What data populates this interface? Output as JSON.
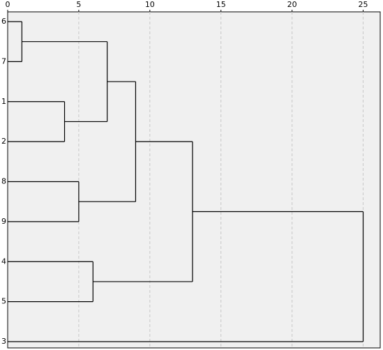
{
  "chart_data": {
    "type": "dendrogram",
    "leaves": [
      "6",
      "7",
      "1",
      "2",
      "8",
      "9",
      "4",
      "5",
      "3"
    ],
    "merges": [
      {
        "nodes": [
          0,
          1
        ],
        "height": 1
      },
      {
        "nodes": [
          2,
          3
        ],
        "height": 4
      },
      {
        "nodes": [
          4,
          5
        ],
        "height": 5
      },
      {
        "nodes": [
          6,
          7
        ],
        "height": 6
      },
      {
        "nodes": [
          9,
          10
        ],
        "height": 7
      },
      {
        "nodes": [
          13,
          11
        ],
        "height": 9
      },
      {
        "nodes": [
          14,
          12
        ],
        "height": 13
      },
      {
        "nodes": [
          15,
          8
        ],
        "height": 25
      }
    ],
    "xlim": [
      0,
      26.2
    ],
    "xticks": [
      0,
      5,
      10,
      15,
      20,
      25
    ],
    "grid": true,
    "background": "#f0f0f0",
    "color": "#000000"
  }
}
